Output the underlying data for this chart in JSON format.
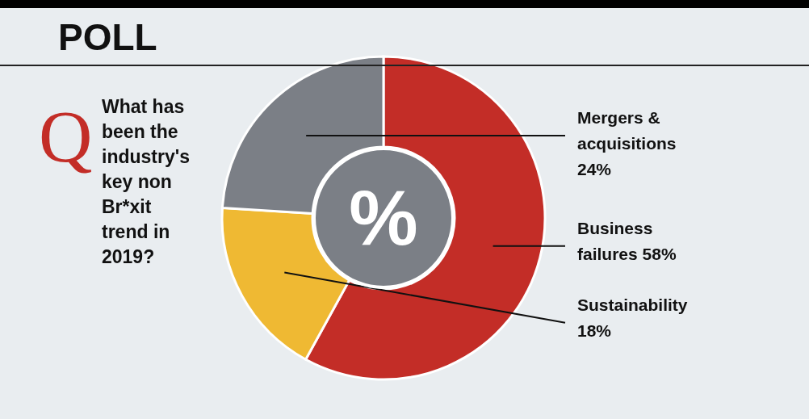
{
  "chart_data": {
    "type": "donut",
    "title": "POLL",
    "annotations": [
      "Q",
      "What has been the industry's key non Br*xit trend in 2019?",
      "%"
    ],
    "categories": [
      "Business failures",
      "Sustainability",
      "Mergers & acquisitions"
    ],
    "values": [
      58,
      18,
      24
    ],
    "value_labels": [
      "58%",
      "18%",
      "24%"
    ],
    "colors": [
      "#c32d27",
      "#efb933",
      "#7b7f86"
    ]
  }
}
